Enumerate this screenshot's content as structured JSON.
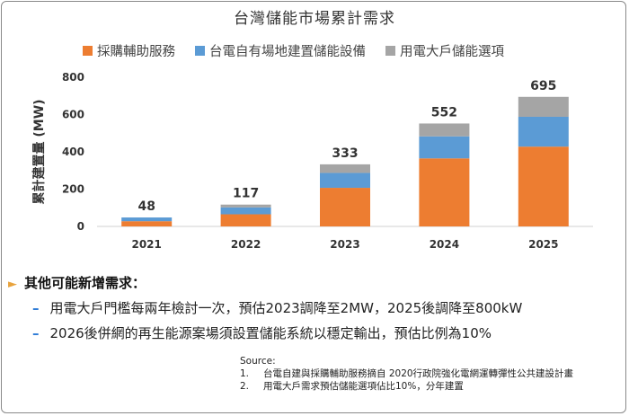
{
  "chart_data": {
    "type": "bar",
    "stacked": true,
    "title": "台灣儲能市場累計需求",
    "ylabel": "累計建置量 (MW)",
    "xlabel": "",
    "ylim": [
      0,
      800
    ],
    "yticks": [
      0,
      200,
      400,
      600,
      800
    ],
    "categories": [
      "2021",
      "2022",
      "2023",
      "2024",
      "2025"
    ],
    "series": [
      {
        "name": "採購輔助服務",
        "color": "#ed7d31",
        "values": [
          28,
          65,
          207,
          365,
          428
        ]
      },
      {
        "name": "台電自有場地建置儲能設備",
        "color": "#5b9bd5",
        "values": [
          20,
          37,
          80,
          118,
          160
        ]
      },
      {
        "name": "用電大戶儲能選項",
        "color": "#a5a5a5",
        "values": [
          0,
          15,
          46,
          69,
          107
        ]
      }
    ],
    "totals": [
      "48",
      "117",
      "333",
      "552",
      "695"
    ],
    "legend_position": "top",
    "grid": false
  },
  "notes": {
    "heading": "其他可能新增需求：",
    "arrow": "►",
    "dash": "–",
    "items": [
      "用電大戶門檻每兩年檢討一次，預估2023調降至2MW，2025後調降至800kW",
      "2026後併網的再生能源案場須設置儲能系統以穩定輸出，預估比例為10%"
    ]
  },
  "source": {
    "label": "Source:",
    "items": [
      {
        "num": "1.",
        "text": "台電自建與採購輔助服務摘自 2020行政院強化電網運轉彈性公共建設計畫"
      },
      {
        "num": "2.",
        "text": "用電大戶需求預估儲能選項佔比10%，分年建置"
      }
    ]
  }
}
